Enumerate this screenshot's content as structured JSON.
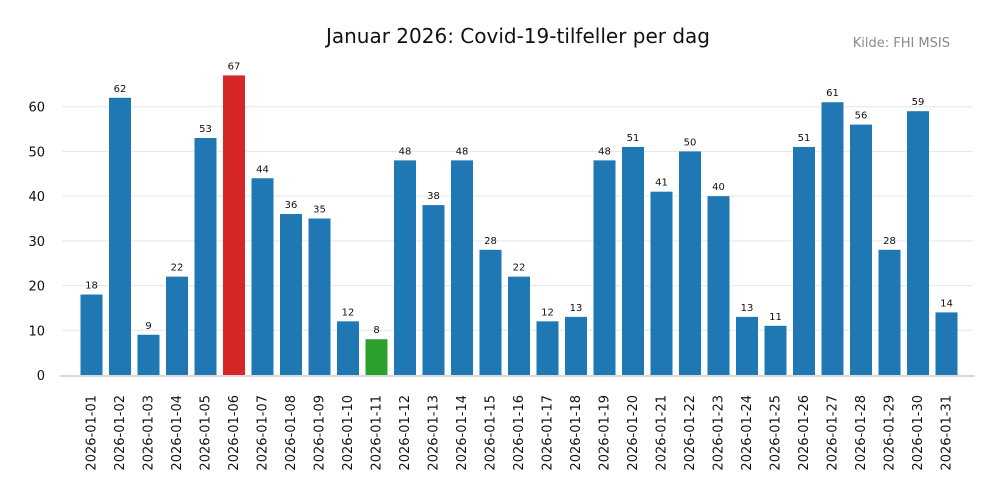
{
  "chart_data": {
    "type": "bar",
    "title": "Januar 2026: Covid-19-tilfeller per dag",
    "source": "Kilde: FHI MSIS",
    "xlabel": "",
    "ylabel": "",
    "ylim": [
      0,
      70
    ],
    "yticks": [
      0,
      10,
      20,
      30,
      40,
      50,
      60
    ],
    "grid": true,
    "legend": "none",
    "categories": [
      "2026-01-01",
      "2026-01-02",
      "2026-01-03",
      "2026-01-04",
      "2026-01-05",
      "2026-01-06",
      "2026-01-07",
      "2026-01-08",
      "2026-01-09",
      "2026-01-10",
      "2026-01-11",
      "2026-01-12",
      "2026-01-13",
      "2026-01-14",
      "2026-01-15",
      "2026-01-16",
      "2026-01-17",
      "2026-01-18",
      "2026-01-19",
      "2026-01-20",
      "2026-01-21",
      "2026-01-22",
      "2026-01-23",
      "2026-01-24",
      "2026-01-25",
      "2026-01-26",
      "2026-01-27",
      "2026-01-28",
      "2026-01-29",
      "2026-01-30",
      "2026-01-31"
    ],
    "values": [
      18,
      62,
      9,
      22,
      53,
      67,
      44,
      36,
      35,
      12,
      8,
      48,
      38,
      48,
      28,
      22,
      12,
      13,
      48,
      51,
      41,
      50,
      40,
      13,
      11,
      51,
      61,
      56,
      28,
      59,
      14
    ],
    "colors": {
      "default": "#1f77b4",
      "max": "#d62728",
      "min": "#2ca02c",
      "grid": "#e6e6e6",
      "axis": "#d9d9d9"
    },
    "highlights": {
      "max_category": "2026-01-06",
      "min_category": "2026-01-11"
    }
  }
}
